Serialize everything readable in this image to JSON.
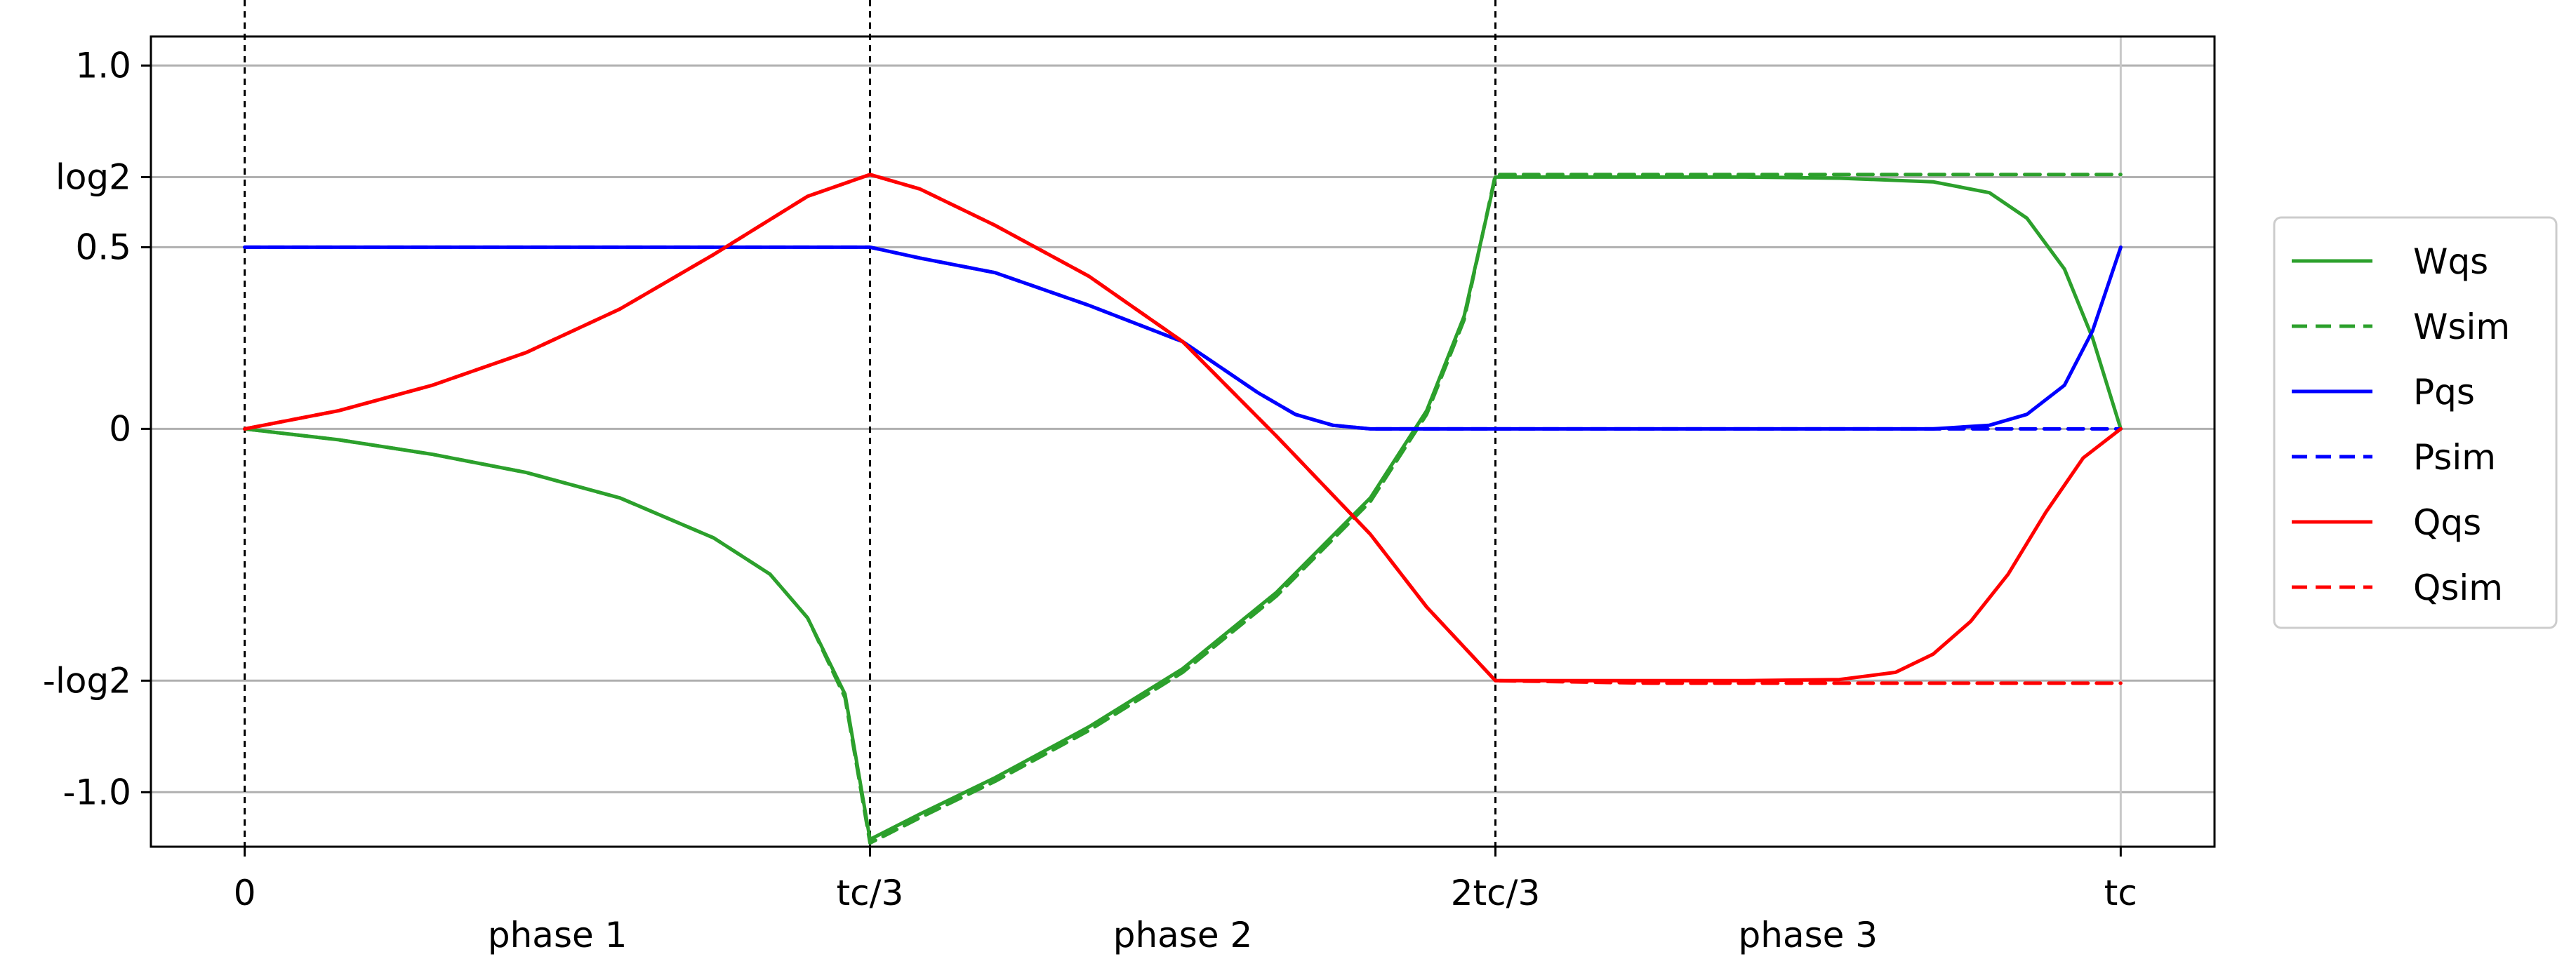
{
  "chart_data": {
    "type": "line",
    "title": "",
    "xlabel": "",
    "ylabel": "",
    "xlim": [
      -0.05,
      1.05
    ],
    "ylim": [
      -1.15,
      1.08
    ],
    "grid": {
      "y": true,
      "x": false
    },
    "legend_position": "right-outside",
    "x_ticks": [
      {
        "value": 0.0,
        "label": "0"
      },
      {
        "value": 0.3333,
        "label": "tc/3"
      },
      {
        "value": 0.6667,
        "label": "2tc/3"
      },
      {
        "value": 1.0,
        "label": "tc"
      }
    ],
    "x_regions": [
      {
        "center": 0.1667,
        "label": "phase 1"
      },
      {
        "center": 0.5,
        "label": "phase 2"
      },
      {
        "center": 0.8333,
        "label": "phase 3"
      }
    ],
    "y_ticks": [
      {
        "value": 1.0,
        "label": "1.0"
      },
      {
        "value": 0.693,
        "label": "log2"
      },
      {
        "value": 0.5,
        "label": "0.5"
      },
      {
        "value": 0.0,
        "label": "0"
      },
      {
        "value": -0.693,
        "label": "-log2"
      },
      {
        "value": -1.0,
        "label": "-1.0"
      }
    ],
    "vlines": [
      0.0,
      0.3333,
      0.6667
    ],
    "series": [
      {
        "name": "Wqs",
        "color": "#2ca02c",
        "style": "solid",
        "points": [
          [
            0.0,
            0.0
          ],
          [
            0.05,
            -0.03
          ],
          [
            0.1,
            -0.07
          ],
          [
            0.15,
            -0.12
          ],
          [
            0.2,
            -0.19
          ],
          [
            0.25,
            -0.3
          ],
          [
            0.28,
            -0.4
          ],
          [
            0.3,
            -0.52
          ],
          [
            0.32,
            -0.73
          ],
          [
            0.3333,
            -1.13
          ],
          [
            0.36,
            -1.06
          ],
          [
            0.4,
            -0.96
          ],
          [
            0.45,
            -0.82
          ],
          [
            0.5,
            -0.66
          ],
          [
            0.55,
            -0.45
          ],
          [
            0.6,
            -0.19
          ],
          [
            0.63,
            0.05
          ],
          [
            0.65,
            0.31
          ],
          [
            0.6667,
            0.693
          ],
          [
            0.72,
            0.693
          ],
          [
            0.8,
            0.693
          ],
          [
            0.85,
            0.69
          ],
          [
            0.9,
            0.68
          ],
          [
            0.93,
            0.65
          ],
          [
            0.95,
            0.58
          ],
          [
            0.97,
            0.44
          ],
          [
            0.985,
            0.25
          ],
          [
            1.0,
            0.0
          ]
        ]
      },
      {
        "name": "Wsim",
        "color": "#2ca02c",
        "style": "dashed",
        "points": [
          [
            0.0,
            0.0
          ],
          [
            0.05,
            -0.03
          ],
          [
            0.1,
            -0.07
          ],
          [
            0.15,
            -0.12
          ],
          [
            0.2,
            -0.19
          ],
          [
            0.25,
            -0.3
          ],
          [
            0.28,
            -0.4
          ],
          [
            0.3,
            -0.52
          ],
          [
            0.32,
            -0.74
          ],
          [
            0.3333,
            -1.14
          ],
          [
            0.36,
            -1.07
          ],
          [
            0.4,
            -0.97
          ],
          [
            0.45,
            -0.83
          ],
          [
            0.5,
            -0.67
          ],
          [
            0.55,
            -0.46
          ],
          [
            0.6,
            -0.2
          ],
          [
            0.63,
            0.04
          ],
          [
            0.65,
            0.3
          ],
          [
            0.6667,
            0.7
          ],
          [
            0.72,
            0.7
          ],
          [
            0.8,
            0.7
          ],
          [
            0.9,
            0.7
          ],
          [
            1.0,
            0.7
          ]
        ]
      },
      {
        "name": "Pqs",
        "color": "#0000ff",
        "style": "solid",
        "points": [
          [
            0.0,
            0.5
          ],
          [
            0.1,
            0.5
          ],
          [
            0.2,
            0.5
          ],
          [
            0.3333,
            0.5
          ],
          [
            0.36,
            0.47
          ],
          [
            0.4,
            0.43
          ],
          [
            0.45,
            0.34
          ],
          [
            0.5,
            0.24
          ],
          [
            0.52,
            0.17
          ],
          [
            0.54,
            0.1
          ],
          [
            0.56,
            0.04
          ],
          [
            0.58,
            0.01
          ],
          [
            0.6,
            0.0
          ],
          [
            0.7,
            0.0
          ],
          [
            0.8,
            0.0
          ],
          [
            0.9,
            0.0
          ],
          [
            0.93,
            0.01
          ],
          [
            0.95,
            0.04
          ],
          [
            0.97,
            0.12
          ],
          [
            0.985,
            0.27
          ],
          [
            1.0,
            0.5
          ]
        ]
      },
      {
        "name": "Psim",
        "color": "#0000ff",
        "style": "dashed",
        "points": [
          [
            0.0,
            0.5
          ],
          [
            0.1,
            0.5
          ],
          [
            0.2,
            0.5
          ],
          [
            0.3333,
            0.5
          ],
          [
            0.36,
            0.47
          ],
          [
            0.4,
            0.43
          ],
          [
            0.45,
            0.34
          ],
          [
            0.5,
            0.24
          ],
          [
            0.52,
            0.17
          ],
          [
            0.54,
            0.1
          ],
          [
            0.56,
            0.04
          ],
          [
            0.58,
            0.01
          ],
          [
            0.6,
            0.0
          ],
          [
            0.7,
            0.0
          ],
          [
            0.8,
            0.0
          ],
          [
            0.9,
            0.0
          ],
          [
            1.0,
            0.0
          ]
        ]
      },
      {
        "name": "Qqs",
        "color": "#ff0000",
        "style": "solid",
        "points": [
          [
            0.0,
            0.0
          ],
          [
            0.05,
            0.05
          ],
          [
            0.1,
            0.12
          ],
          [
            0.15,
            0.21
          ],
          [
            0.2,
            0.33
          ],
          [
            0.25,
            0.48
          ],
          [
            0.3,
            0.64
          ],
          [
            0.3333,
            0.7
          ],
          [
            0.36,
            0.66
          ],
          [
            0.4,
            0.56
          ],
          [
            0.45,
            0.42
          ],
          [
            0.5,
            0.24
          ],
          [
            0.55,
            -0.02
          ],
          [
            0.6,
            -0.29
          ],
          [
            0.63,
            -0.49
          ],
          [
            0.6667,
            -0.693
          ],
          [
            0.72,
            -0.693
          ],
          [
            0.8,
            -0.693
          ],
          [
            0.85,
            -0.69
          ],
          [
            0.88,
            -0.67
          ],
          [
            0.9,
            -0.62
          ],
          [
            0.92,
            -0.53
          ],
          [
            0.94,
            -0.4
          ],
          [
            0.96,
            -0.23
          ],
          [
            0.98,
            -0.08
          ],
          [
            1.0,
            0.0
          ]
        ]
      },
      {
        "name": "Qsim",
        "color": "#ff0000",
        "style": "dashed",
        "points": [
          [
            0.0,
            0.0
          ],
          [
            0.05,
            0.05
          ],
          [
            0.1,
            0.12
          ],
          [
            0.15,
            0.21
          ],
          [
            0.2,
            0.33
          ],
          [
            0.25,
            0.48
          ],
          [
            0.3,
            0.64
          ],
          [
            0.3333,
            0.7
          ],
          [
            0.36,
            0.66
          ],
          [
            0.4,
            0.56
          ],
          [
            0.45,
            0.42
          ],
          [
            0.5,
            0.24
          ],
          [
            0.55,
            -0.02
          ],
          [
            0.6,
            -0.29
          ],
          [
            0.63,
            -0.49
          ],
          [
            0.6667,
            -0.693
          ],
          [
            0.75,
            -0.7
          ],
          [
            0.85,
            -0.7
          ],
          [
            0.95,
            -0.7
          ],
          [
            1.0,
            -0.7
          ]
        ]
      }
    ]
  }
}
